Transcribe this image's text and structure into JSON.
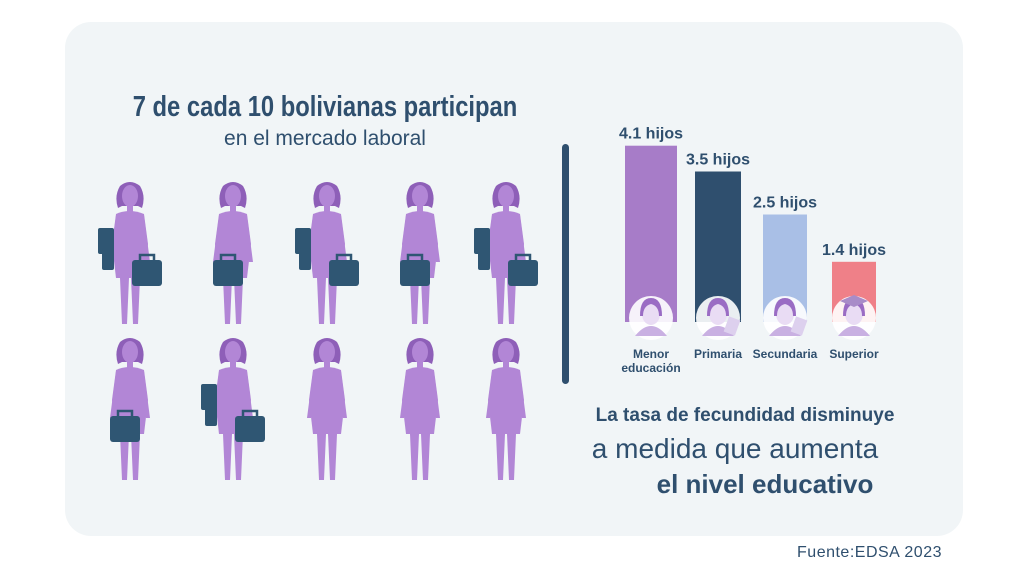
{
  "title": "7 de cada 10 bolivianas participan",
  "subtitle": "en el mercado laboral",
  "pictogram": {
    "total": 10,
    "working": 7,
    "figure_color": "#b286d6",
    "bag_color": "#2f5673",
    "rows": [
      [
        {
          "bags": 2
        },
        {
          "bags": 1
        },
        {
          "bags": 2
        },
        {
          "bags": 1
        },
        {
          "bags": 2
        }
      ],
      [
        {
          "bags": 1
        },
        {
          "bags": 2
        },
        {
          "bags": 0
        },
        {
          "bags": 0
        },
        {
          "bags": 0
        }
      ]
    ]
  },
  "chart_data": {
    "type": "bar",
    "categories": [
      "Menor educación",
      "Primaria",
      "Secundaria",
      "Superior"
    ],
    "values": [
      4.1,
      3.5,
      2.5,
      1.4
    ],
    "data_labels": [
      "4.1 hijos",
      "3.5 hijos",
      "2.5 hijos",
      "1.4 hijos"
    ],
    "colors": [
      "#a77cc8",
      "#2f4f6e",
      "#a9bfe6",
      "#ef8088"
    ],
    "icons": [
      "woman-icon",
      "woman-book-icon",
      "woman-diploma-icon",
      "graduate-icon"
    ],
    "ylim": [
      0,
      4.1
    ],
    "grid": false
  },
  "statement": {
    "line1": "La tasa de fecundidad disminuye",
    "line2": "a medida que aumenta",
    "line3": "el nivel educativo"
  },
  "source": "Fuente:EDSA 2023"
}
